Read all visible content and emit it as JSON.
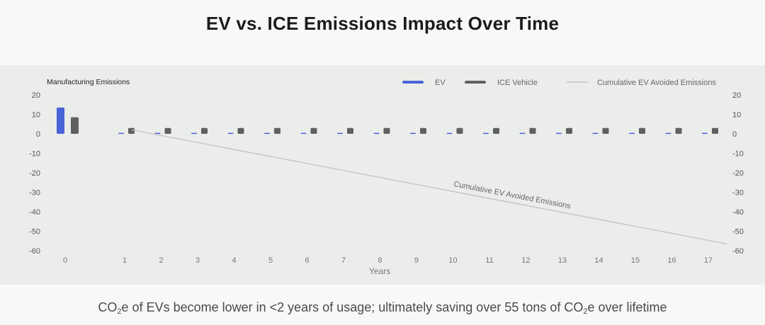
{
  "page": {
    "title": "EV vs. ICE Emissions Impact Over Time",
    "footer": {
      "part1": "CO",
      "sub1": "2",
      "part2": "e of EVs become lower in <2 years of usage; ultimately saving over 55 tons of CO",
      "sub2": "2",
      "part3": "e over lifetime"
    }
  },
  "colors": {
    "ev": "#4a63d8",
    "ice": "#5f6060",
    "cumulative": "#c4c4c4",
    "panel": "#ebedeb"
  },
  "chart_data": {
    "type": "bar",
    "title": "EV vs. ICE Emissions Impact Over Time",
    "xlabel": "Years",
    "ylabel": "",
    "ylim": [
      -60,
      20
    ],
    "yticks": [
      20,
      10,
      0,
      -10,
      -20,
      -30,
      -40,
      -50,
      -60
    ],
    "grid": false,
    "categories": [
      "0",
      "1",
      "2",
      "3",
      "4",
      "5",
      "6",
      "7",
      "8",
      "9",
      "10",
      "11",
      "12",
      "13",
      "14",
      "15",
      "16",
      "17"
    ],
    "series": [
      {
        "name": "EV",
        "values": [
          13.5,
          0.5,
          0.5,
          0.5,
          0.5,
          0.5,
          0.5,
          0.5,
          0.5,
          0.5,
          0.5,
          0.5,
          0.5,
          0.5,
          0.5,
          0.5,
          0.5,
          0.5
        ]
      },
      {
        "name": "ICE Vehicle",
        "values": [
          8.5,
          3,
          3,
          3,
          3,
          3,
          3,
          3,
          3,
          3,
          3,
          3,
          3,
          3,
          3,
          3,
          3,
          3
        ]
      }
    ],
    "line_series": {
      "name": "Cumulative EV Avoided Emissions",
      "x": [
        1.2,
        17.5
      ],
      "y": [
        2,
        -56.5
      ]
    },
    "annotations": [
      {
        "text": "Manufacturing Emissions",
        "position": "top-left"
      },
      {
        "text": "Cumulative EV Avoided  Emissions",
        "position": "along-line"
      }
    ],
    "legend": {
      "position": "top-right",
      "entries": [
        "EV",
        "ICE Vehicle",
        "Cumulative EV Avoided Emissions"
      ]
    }
  }
}
